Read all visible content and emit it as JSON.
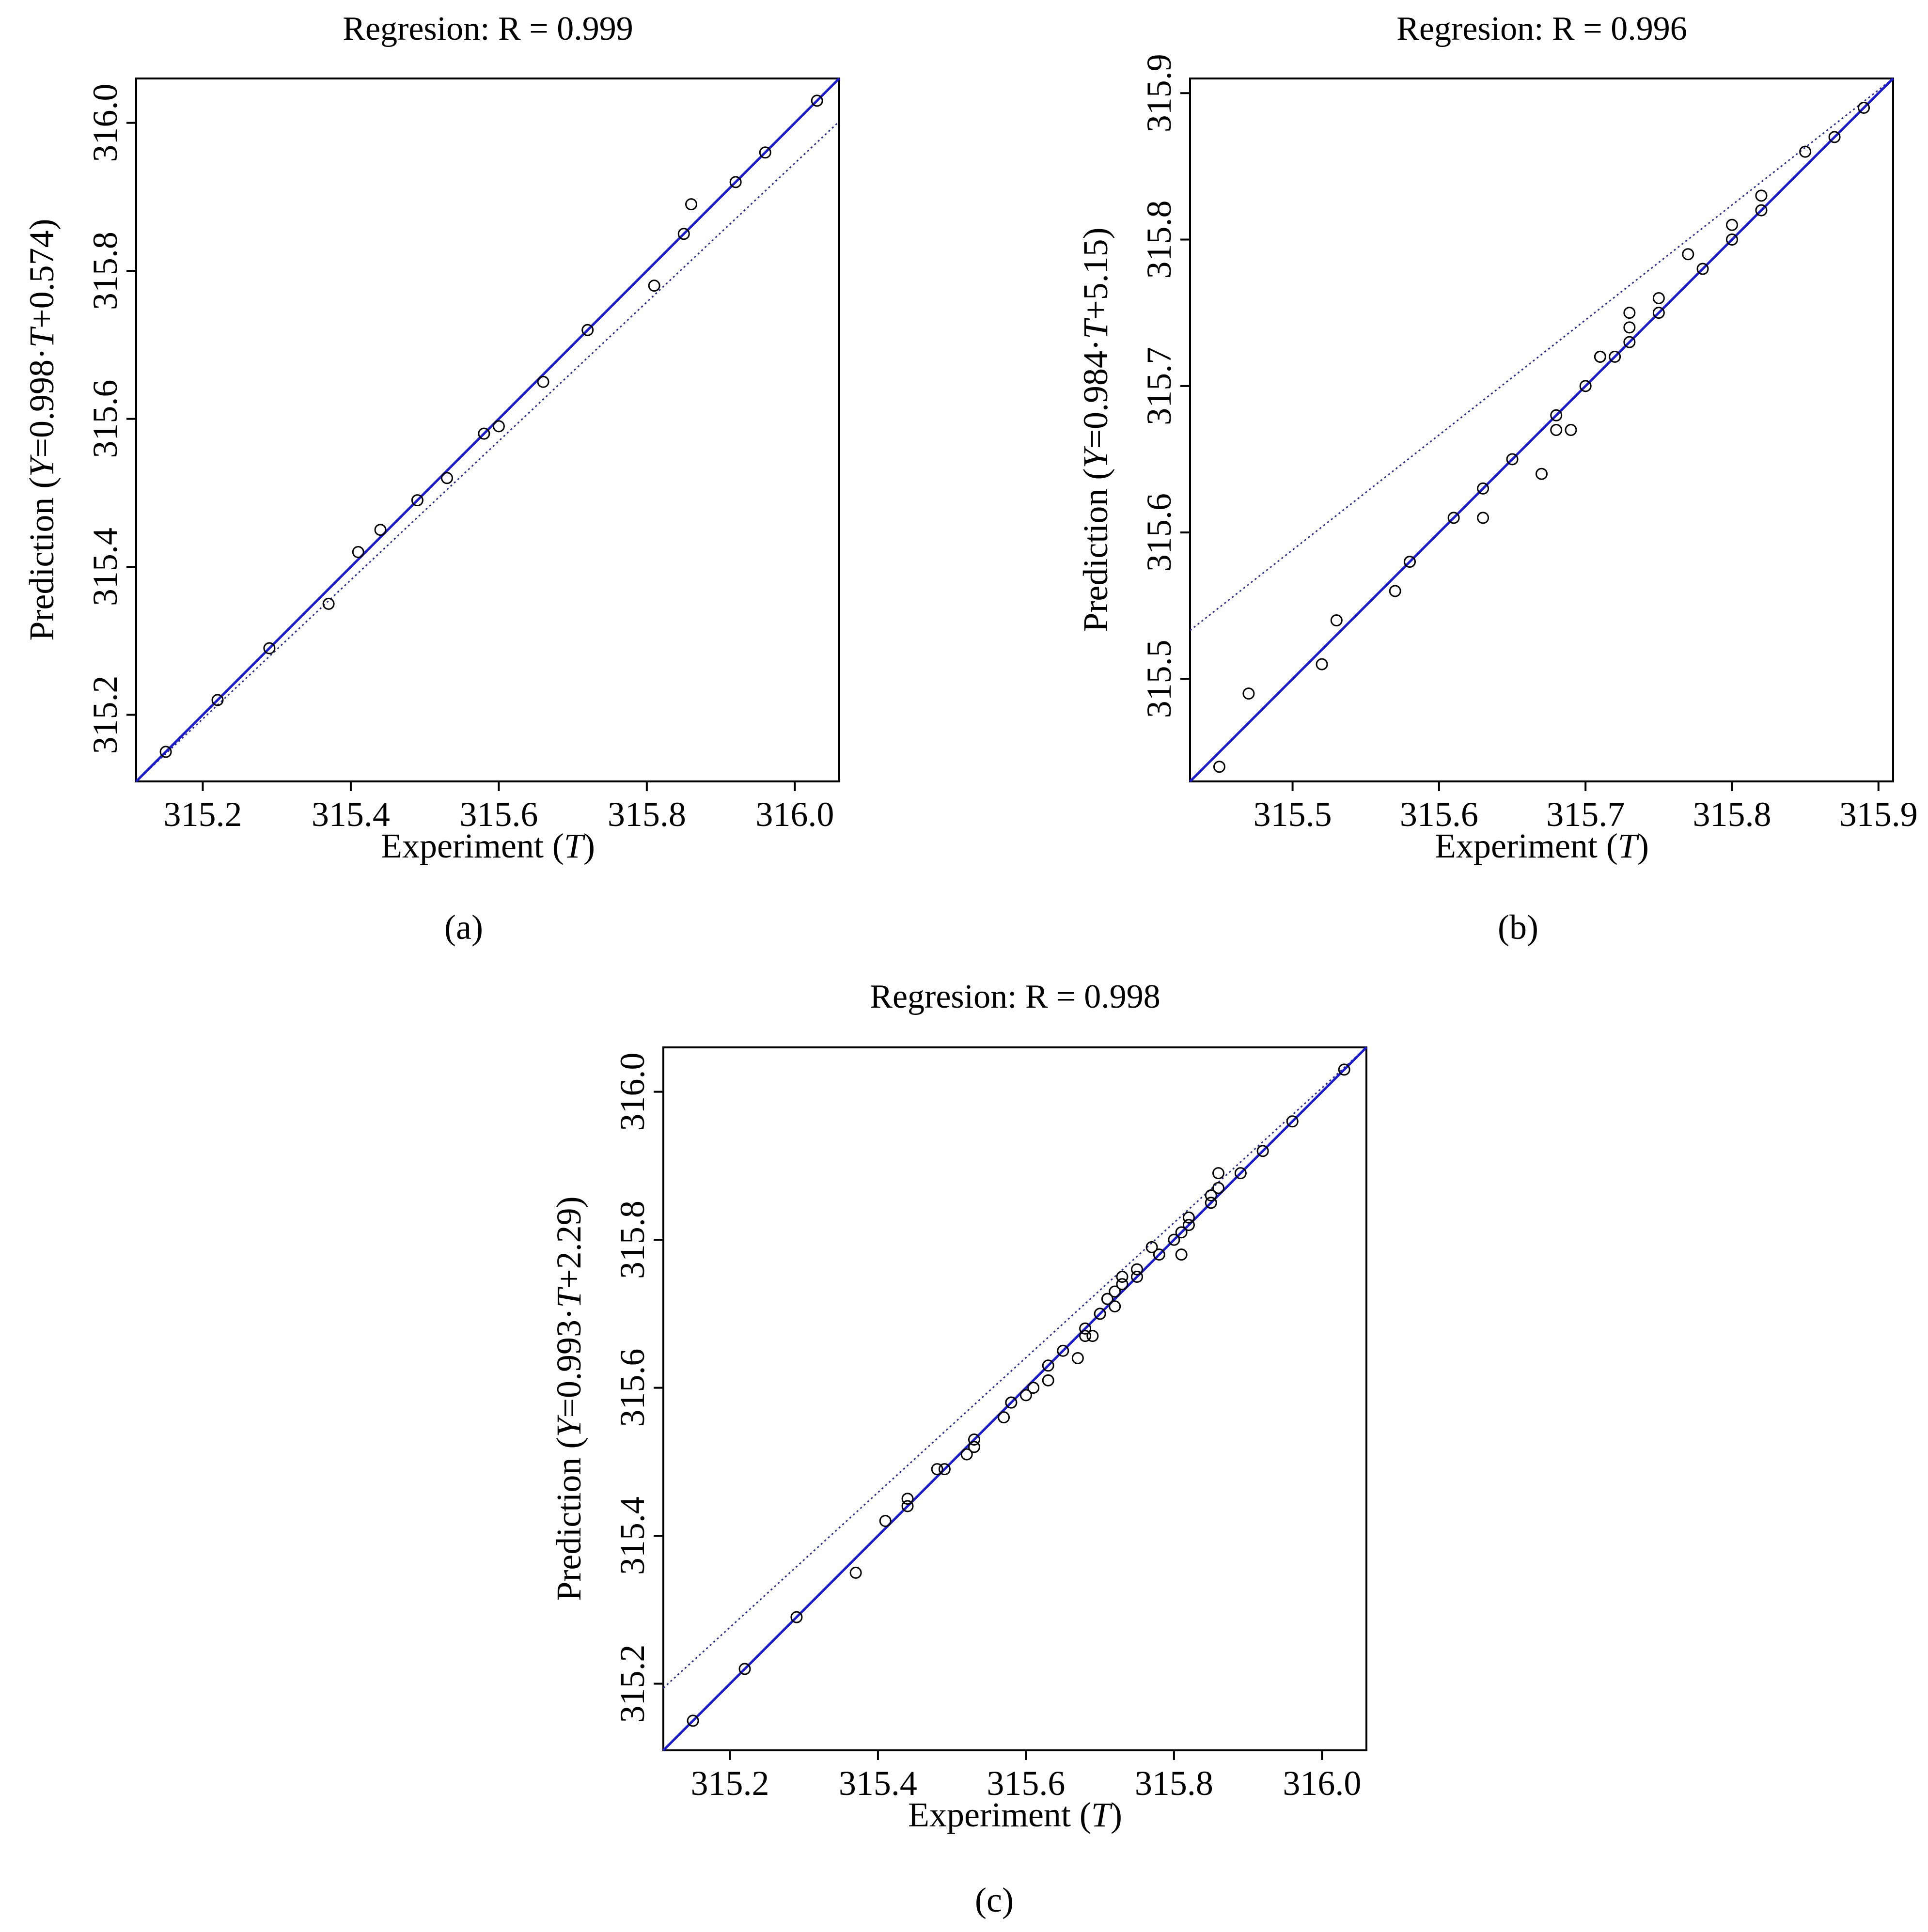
{
  "chart_data": [
    {
      "type": "scatter",
      "panel_label": "(a)",
      "title": "Regresion: R = 0.999",
      "xlabel_prefix": "Experiment (",
      "xlabel_var": "T",
      "xlabel_suffix": ")",
      "ylabel_prefix": "Prediction (",
      "ylabel_var_y": "Y",
      "ylabel_eq": "=0.998·",
      "ylabel_var_t": "T",
      "ylabel_suffix": "+0.574)",
      "xlim": [
        315.11,
        316.06
      ],
      "ylim": [
        315.11,
        316.06
      ],
      "xticks": [
        315.2,
        315.4,
        315.6,
        315.8,
        316.0
      ],
      "xtick_labels": [
        "315.2",
        "315.4",
        "315.6",
        "315.8",
        "316.0"
      ],
      "yticks": [
        315.2,
        315.4,
        315.6,
        315.8,
        316.0
      ],
      "ytick_labels": [
        "315.2",
        "315.4",
        "315.6",
        "315.8",
        "316.0"
      ],
      "fit": {
        "slope": 0.998,
        "intercept": 0.574
      },
      "colors": {
        "reference_line": "#1a1ad6",
        "points": "#000000"
      },
      "x": [
        315.15,
        315.22,
        315.29,
        315.37,
        315.41,
        315.44,
        315.49,
        315.53,
        315.58,
        315.6,
        315.66,
        315.72,
        315.81,
        315.85,
        315.86,
        315.92,
        315.96,
        316.03
      ],
      "y": [
        315.15,
        315.22,
        315.29,
        315.35,
        315.42,
        315.45,
        315.49,
        315.52,
        315.58,
        315.59,
        315.65,
        315.72,
        315.78,
        315.85,
        315.89,
        315.92,
        315.96,
        316.03
      ]
    },
    {
      "type": "scatter",
      "panel_label": "(b)",
      "title": "Regresion: R = 0.996",
      "xlabel_prefix": "Experiment (",
      "xlabel_var": "T",
      "xlabel_suffix": ")",
      "ylabel_prefix": "Prediction (",
      "ylabel_var_y": "Y",
      "ylabel_eq": "=0.984·",
      "ylabel_var_t": "T",
      "ylabel_suffix": "+5.15)",
      "xlim": [
        315.43,
        315.91
      ],
      "ylim": [
        315.43,
        315.91
      ],
      "xticks": [
        315.5,
        315.6,
        315.7,
        315.8,
        315.9
      ],
      "xtick_labels": [
        "315.5",
        "315.6",
        "315.7",
        "315.8",
        "315.9"
      ],
      "yticks": [
        315.5,
        315.6,
        315.7,
        315.8,
        315.9
      ],
      "ytick_labels": [
        "315.5",
        "315.6",
        "315.7",
        "315.8",
        "315.9"
      ],
      "fit": {
        "slope": 0.984,
        "intercept": 5.15
      },
      "colors": {
        "reference_line": "#1a1ad6",
        "points": "#000000"
      },
      "x": [
        315.45,
        315.47,
        315.52,
        315.53,
        315.57,
        315.58,
        315.58,
        315.61,
        315.63,
        315.63,
        315.65,
        315.67,
        315.68,
        315.68,
        315.69,
        315.7,
        315.71,
        315.71,
        315.72,
        315.73,
        315.73,
        315.73,
        315.75,
        315.75,
        315.77,
        315.78,
        315.8,
        315.8,
        315.82,
        315.82,
        315.85,
        315.87,
        315.89
      ],
      "y": [
        315.44,
        315.49,
        315.51,
        315.54,
        315.56,
        315.58,
        315.58,
        315.61,
        315.61,
        315.63,
        315.65,
        315.64,
        315.67,
        315.68,
        315.67,
        315.7,
        315.72,
        315.72,
        315.72,
        315.73,
        315.75,
        315.74,
        315.75,
        315.76,
        315.79,
        315.78,
        315.8,
        315.81,
        315.82,
        315.83,
        315.86,
        315.87,
        315.89
      ]
    },
    {
      "type": "scatter",
      "panel_label": "(c)",
      "title": "Regresion: R = 0.998",
      "xlabel_prefix": "Experiment (",
      "xlabel_var": "T",
      "xlabel_suffix": ")",
      "ylabel_prefix": "Prediction (",
      "ylabel_var_y": "Y",
      "ylabel_eq": "=0.993·",
      "ylabel_var_t": "T",
      "ylabel_suffix": "+2.29)",
      "xlim": [
        315.11,
        316.06
      ],
      "ylim": [
        315.11,
        316.06
      ],
      "xticks": [
        315.2,
        315.4,
        315.6,
        315.8,
        316.0
      ],
      "xtick_labels": [
        "315.2",
        "315.4",
        "315.6",
        "315.8",
        "316.0"
      ],
      "yticks": [
        315.2,
        315.4,
        315.6,
        315.8,
        316.0
      ],
      "ytick_labels": [
        "315.2",
        "315.4",
        "315.6",
        "315.8",
        "316.0"
      ],
      "fit": {
        "slope": 0.993,
        "intercept": 2.29
      },
      "colors": {
        "reference_line": "#1a1ad6",
        "points": "#000000"
      },
      "x": [
        315.15,
        315.22,
        315.29,
        315.37,
        315.41,
        315.44,
        315.44,
        315.48,
        315.49,
        315.52,
        315.53,
        315.53,
        315.57,
        315.58,
        315.58,
        315.6,
        315.61,
        315.63,
        315.63,
        315.65,
        315.67,
        315.68,
        315.68,
        315.69,
        315.7,
        315.71,
        315.71,
        315.72,
        315.72,
        315.73,
        315.73,
        315.75,
        315.75,
        315.77,
        315.78,
        315.8,
        315.81,
        315.81,
        315.82,
        315.82,
        315.85,
        315.85,
        315.86,
        315.86,
        315.89,
        315.92,
        315.96,
        316.03
      ],
      "y": [
        315.15,
        315.22,
        315.29,
        315.35,
        315.42,
        315.45,
        315.44,
        315.49,
        315.49,
        315.51,
        315.53,
        315.52,
        315.56,
        315.58,
        315.58,
        315.59,
        315.6,
        315.61,
        315.63,
        315.65,
        315.64,
        315.67,
        315.68,
        315.67,
        315.7,
        315.72,
        315.72,
        315.71,
        315.73,
        315.74,
        315.75,
        315.75,
        315.76,
        315.79,
        315.78,
        315.8,
        315.81,
        315.78,
        315.82,
        315.83,
        315.85,
        315.86,
        315.87,
        315.89,
        315.89,
        315.92,
        315.96,
        316.03
      ]
    }
  ]
}
